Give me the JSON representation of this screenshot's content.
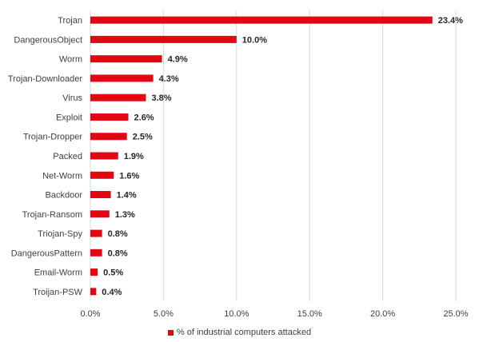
{
  "chart_data": {
    "type": "bar",
    "orientation": "horizontal",
    "categories": [
      "Trojan",
      "DangerousObject",
      "Worm",
      "Trojan-Downloader",
      "Virus",
      "Exploit",
      "Trojan-Dropper",
      "Packed",
      "Net-Worm",
      "Backdoor",
      "Trojan-Ransom",
      "Triojan-Spy",
      "DangerousPattern",
      "Email-Worm",
      "Troijan-PSW"
    ],
    "series": [
      {
        "name": "% of industrial computers attacked",
        "values": [
          23.4,
          10.0,
          4.9,
          4.3,
          3.8,
          2.6,
          2.5,
          1.9,
          1.6,
          1.4,
          1.3,
          0.8,
          0.8,
          0.5,
          0.4
        ],
        "labels": [
          "23.4%",
          "10.0%",
          "4.9%",
          "4.3%",
          "3.8%",
          "2.6%",
          "2.5%",
          "1.9%",
          "1.6%",
          "1.4%",
          "1.3%",
          "0.8%",
          "0.8%",
          "0.5%",
          "0.4%"
        ]
      }
    ],
    "xlim": [
      0,
      25
    ],
    "xticks": [
      "0.0%",
      "5.0%",
      "10.0%",
      "15.0%",
      "20.0%",
      "25.0%"
    ],
    "grid": "vertical",
    "legend_position": "bottom",
    "bar_color": "#e30613"
  }
}
